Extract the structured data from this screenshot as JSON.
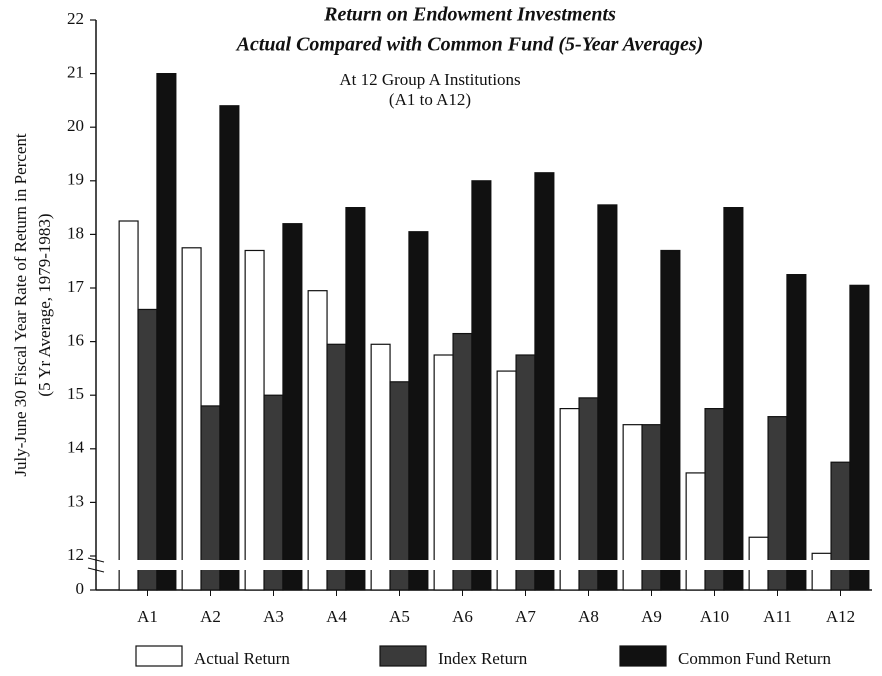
{
  "chart_data": {
    "type": "bar",
    "title": "Return on Endowment Investments",
    "subtitle": "Actual Compared with Common Fund (5-Year Averages)",
    "annotation": [
      "At 12 Group A Institutions",
      "(A1 to A12)"
    ],
    "y_label": [
      "July-June 30 Fiscal Year Rate of Return in Percent",
      "(5 Yr Average, 1979-1983)"
    ],
    "categories": [
      "A1",
      "A2",
      "A3",
      "A4",
      "A5",
      "A6",
      "A7",
      "A8",
      "A9",
      "A10",
      "A11",
      "A12"
    ],
    "series": [
      {
        "name": "Actual Return",
        "color": "#ffffff",
        "values": [
          18.25,
          17.75,
          17.7,
          16.95,
          15.95,
          15.75,
          15.45,
          14.75,
          14.45,
          13.55,
          12.35,
          12.05
        ]
      },
      {
        "name": "Index Return",
        "color": "#3a3a3a",
        "values": [
          16.6,
          14.8,
          15.0,
          15.95,
          15.25,
          16.15,
          15.75,
          14.95,
          14.45,
          14.75,
          14.6,
          13.75
        ]
      },
      {
        "name": "Common Fund Return",
        "color": "#111111",
        "values": [
          21.0,
          20.4,
          18.2,
          18.5,
          18.05,
          19.0,
          19.15,
          18.55,
          17.7,
          18.5,
          17.25,
          17.05
        ]
      }
    ],
    "ylim": [
      0,
      22
    ],
    "axis_break": [
      0,
      12
    ],
    "yticks": [
      0,
      12,
      13,
      14,
      15,
      16,
      17,
      18,
      19,
      20,
      21,
      22
    ]
  }
}
